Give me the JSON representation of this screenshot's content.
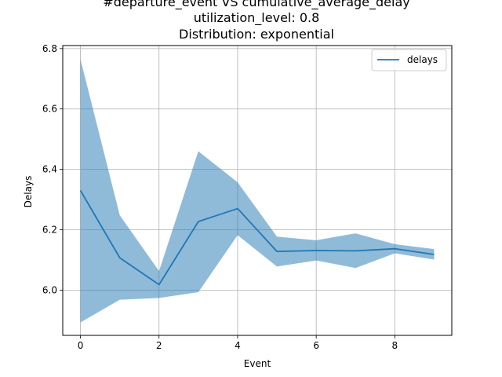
{
  "chart_data": {
    "type": "line",
    "title_lines": [
      "#departure_event VS cumulative_average_delay",
      "utilization_level: 0.8",
      "Distribution: exponential"
    ],
    "xlabel": "Event",
    "ylabel": "Delays",
    "xlim": [
      -0.45,
      9.45
    ],
    "ylim": [
      5.85,
      6.81
    ],
    "xticks": [
      0,
      2,
      4,
      6,
      8
    ],
    "yticks": [
      6.0,
      6.2,
      6.4,
      6.6,
      6.8
    ],
    "xtick_labels": [
      "0",
      "2",
      "4",
      "6",
      "8"
    ],
    "ytick_labels": [
      "6.0",
      "6.2",
      "6.4",
      "6.6",
      "6.8"
    ],
    "grid": true,
    "legend_position": "top-right",
    "x": [
      0,
      1,
      2,
      3,
      4,
      5,
      6,
      7,
      8,
      9
    ],
    "series": [
      {
        "name": "delays",
        "values": [
          6.33,
          6.107,
          6.018,
          6.227,
          6.27,
          6.128,
          6.131,
          6.13,
          6.137,
          6.118
        ],
        "lower": [
          5.893,
          5.968,
          5.974,
          5.993,
          6.182,
          6.078,
          6.098,
          6.073,
          6.122,
          6.101
        ],
        "upper": [
          6.765,
          6.248,
          6.063,
          6.46,
          6.357,
          6.177,
          6.165,
          6.188,
          6.152,
          6.136
        ],
        "color": "#1f77b4",
        "band_color": "#1f77b4"
      }
    ]
  }
}
